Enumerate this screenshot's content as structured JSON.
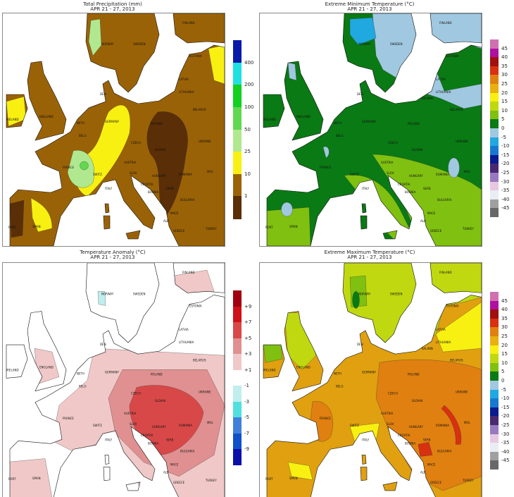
{
  "panels": [
    {
      "id": "precip",
      "title": "Total Precipitation (mm)",
      "subtitle": "APR 21 - 27, 2013",
      "base_color": "#9a6206",
      "legend": {
        "colors": [
          "#0a1aa8",
          "#20e0e0",
          "#10d020",
          "#60d850",
          "#b0e890",
          "#f8f010",
          "#9a6206",
          "#5a2e06"
        ],
        "labels": [
          "400",
          "200",
          "100",
          "50",
          "25",
          "10",
          "1"
        ]
      },
      "countries": [
        "NORWAY",
        "SWEDEN",
        "FINLAND",
        "ESTONIA",
        "LATVIA",
        "LITHUANIA",
        "BELARUS",
        "IRELAND",
        "ENGLAND",
        "DEN",
        "NETH",
        "BELG",
        "GERMANY",
        "POLAND",
        "CZECH",
        "SLOVAK",
        "UKRAINE",
        "FRANCE",
        "SWITZ",
        "AUSTRIA",
        "HUNGARY",
        "ROMANIA",
        "MOL",
        "SLOV",
        "CROATIA",
        "BOSNIA",
        "SERB",
        "ITALY",
        "BULGARIA",
        "MACE",
        "ALB",
        "GREECE",
        "TURKEY",
        "PORT",
        "SPAIN"
      ]
    },
    {
      "id": "tmin",
      "title": "Extreme Minimum Temperature (°C)",
      "subtitle": "APR 21 - 27, 2013",
      "base_color": "#0a7a14",
      "legend": {
        "colors": [
          "#d070b0",
          "#b010a0",
          "#a01010",
          "#d83010",
          "#e08010",
          "#e8b010",
          "#f8f010",
          "#c0d810",
          "#80c010",
          "#0a7a14",
          "#a0c8e0",
          "#20a8e0",
          "#1878d0",
          "#0a1a90",
          "#482870",
          "#9878c0",
          "#e8c8e0",
          "#e8eef4",
          "#a0a0a0",
          "#686868"
        ],
        "labels": [
          "45",
          "40",
          "35",
          "30",
          "25",
          "20",
          "15",
          "10",
          "5",
          "0",
          "-5",
          "-10",
          "-15",
          "-20",
          "-25",
          "-30",
          "-35",
          "-40",
          "-45"
        ]
      },
      "countries": [
        "NORWAY",
        "SWEDEN",
        "FINLAND",
        "ESTONIA",
        "LATVIA",
        "LITHUANIA",
        "KALININ",
        "BELARUS",
        "IRELAND",
        "ENGLAND",
        "DEN",
        "NETH",
        "BELG",
        "GERMANY",
        "POLAND",
        "CZECH",
        "SLOVAK",
        "UKRAINE",
        "FRANCE",
        "SWITZ",
        "AUSTRIA",
        "HUNGARY",
        "ROMANIA",
        "MOL",
        "SLOV",
        "CROATIA",
        "BOSNIA",
        "SERB",
        "ITALY",
        "BULGARIA",
        "MACE",
        "ALB",
        "GREECE",
        "TURKEY",
        "PORT",
        "SPAIN"
      ]
    },
    {
      "id": "anom",
      "title": "Temperature Anomaly (°C)",
      "subtitle": "APR 21 - 27, 2013",
      "base_color": "#ffffff",
      "legend": {
        "colors": [
          "#a00010",
          "#d01018",
          "#d84848",
          "#e09090",
          "#f0c8c8",
          "#ffffff",
          "#c0eeee",
          "#50e0e0",
          "#4080d8",
          "#1050c8",
          "#0a10a8"
        ],
        "labels": [
          "+9",
          "+7",
          "+5",
          "+3",
          "+1",
          "-1",
          "-3",
          "-5",
          "-7",
          "-9"
        ]
      },
      "countries": [
        "NORWAY",
        "SWEDEN",
        "FINLAND",
        "ESTONIA",
        "LATVIA",
        "LITHUANIA",
        "BELARUS",
        "IRELAND",
        "ENGLAND",
        "DEN",
        "NETH",
        "BELG",
        "GERMANY",
        "POLAND",
        "CZECH",
        "SLOVAK",
        "UKRAINE",
        "FRANCE",
        "SWITZ",
        "AUSTRIA",
        "HUNGARY",
        "ROMANIA",
        "MOL",
        "SLOV",
        "CROATIA",
        "BOSNIA",
        "SERB",
        "ITALY",
        "BULGARIA",
        "MACE",
        "ALB",
        "GREECE",
        "TURKEY",
        "PORT",
        "SPAIN"
      ]
    },
    {
      "id": "tmax",
      "title": "Extreme Maximum Temperature (°C)",
      "subtitle": "APR 21 - 27, 2013",
      "base_color": "#e0a010",
      "legend": {
        "colors": [
          "#d070b0",
          "#b010a0",
          "#a01010",
          "#d83010",
          "#e08010",
          "#e8b010",
          "#f8f010",
          "#c0d810",
          "#80c010",
          "#0a7a14",
          "#a0c8e0",
          "#20a8e0",
          "#1878d0",
          "#0a1a90",
          "#482870",
          "#9878c0",
          "#e8c8e0",
          "#e8eef4",
          "#a0a0a0",
          "#686868"
        ],
        "labels": [
          "45",
          "40",
          "35",
          "30",
          "25",
          "20",
          "15",
          "10",
          "5",
          "0",
          "-5",
          "-10",
          "-15",
          "-20",
          "-25",
          "-30",
          "-35",
          "-40",
          "-45"
        ]
      },
      "countries": [
        "NORWAY",
        "SWEDEN",
        "FINLAND",
        "ESTONIA",
        "LATVIA",
        "LITHUANIA",
        "KALININ",
        "BELARUS",
        "IRELAND",
        "ENGLAND",
        "DEN",
        "NETH",
        "BELG",
        "GERMANY",
        "POLAND",
        "CZECH",
        "SLOVAK",
        "UKRAINE",
        "FRANCE",
        "SWITZ",
        "AUSTRIA",
        "HUNGARY",
        "ROMANIA",
        "MOL",
        "SLOV",
        "CROATIA",
        "BOSNIA",
        "SERB",
        "ITALY",
        "BULGARIA",
        "MACE",
        "ALB",
        "GREECE",
        "TURKEY",
        "PORT",
        "SPAIN"
      ]
    }
  ]
}
